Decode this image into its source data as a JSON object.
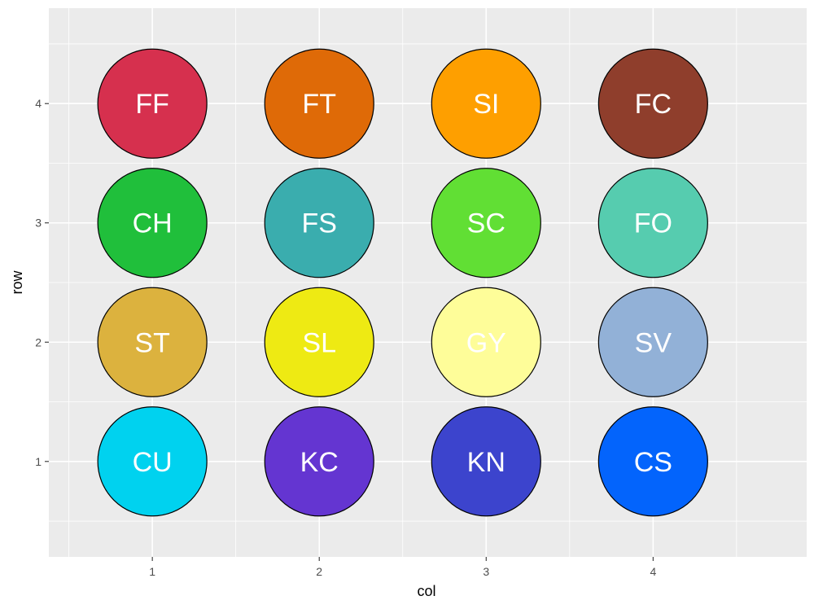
{
  "chart_data": {
    "type": "scatter",
    "xlabel": "col",
    "ylabel": "row",
    "xlim": [
      0.38,
      4.92
    ],
    "ylim": [
      0.2,
      4.8
    ],
    "x_ticks": [
      1,
      2,
      3,
      4
    ],
    "y_ticks": [
      1,
      2,
      3,
      4
    ],
    "grid": true,
    "legend": "none",
    "panel_background": "#ebebeb",
    "point_border_color": "#000000",
    "label_color": "#ffffff",
    "points": [
      {
        "col": 1,
        "row": 4,
        "label": "FF",
        "color": "#d6304e"
      },
      {
        "col": 2,
        "row": 4,
        "label": "FT",
        "color": "#df6a07"
      },
      {
        "col": 3,
        "row": 4,
        "label": "SI",
        "color": "#fe9f00"
      },
      {
        "col": 4,
        "row": 4,
        "label": "FC",
        "color": "#8f3e2c"
      },
      {
        "col": 1,
        "row": 3,
        "label": "CH",
        "color": "#20bf3b"
      },
      {
        "col": 2,
        "row": 3,
        "label": "FS",
        "color": "#3aadae"
      },
      {
        "col": 3,
        "row": 3,
        "label": "SC",
        "color": "#61df34"
      },
      {
        "col": 4,
        "row": 3,
        "label": "FO",
        "color": "#56ccaf"
      },
      {
        "col": 1,
        "row": 2,
        "label": "ST",
        "color": "#dcb23e"
      },
      {
        "col": 2,
        "row": 2,
        "label": "SL",
        "color": "#eeea13"
      },
      {
        "col": 3,
        "row": 2,
        "label": "GY",
        "color": "#fefd99"
      },
      {
        "col": 4,
        "row": 2,
        "label": "SV",
        "color": "#92b1d7"
      },
      {
        "col": 1,
        "row": 1,
        "label": "CU",
        "color": "#00d2ef"
      },
      {
        "col": 2,
        "row": 1,
        "label": "KC",
        "color": "#6435d1"
      },
      {
        "col": 3,
        "row": 1,
        "label": "KN",
        "color": "#3c44cd"
      },
      {
        "col": 4,
        "row": 1,
        "label": "CS",
        "color": "#0364fc"
      }
    ]
  }
}
